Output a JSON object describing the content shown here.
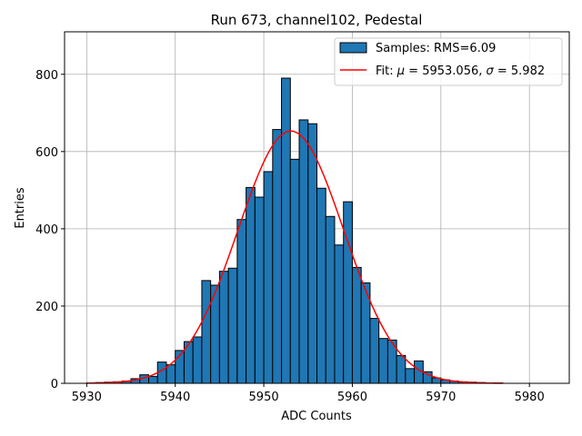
{
  "chart_data": {
    "type": "bar",
    "title": "Run 673, channel102, Pedestal",
    "xlabel": "ADC Counts",
    "ylabel": "Entries",
    "xlim": [
      5927.5,
      5984.5
    ],
    "ylim": [
      0,
      910
    ],
    "xticks": [
      5930,
      5940,
      5950,
      5960,
      5970,
      5980
    ],
    "yticks": [
      0,
      200,
      400,
      600,
      800
    ],
    "grid": true,
    "legend_position": "top-right",
    "colors": {
      "bars": "#1f77b4",
      "bar_edge": "#000000",
      "fit": "#ff0000",
      "grid": "#b0b0b0"
    },
    "histogram": {
      "name": "Samples: RMS=6.09",
      "bin_edges": [
        5930,
        5931,
        5932,
        5933,
        5934,
        5935,
        5936,
        5937,
        5938,
        5939,
        5940,
        5941,
        5942,
        5943,
        5944,
        5945,
        5946,
        5947,
        5948,
        5949,
        5950,
        5951,
        5952,
        5953,
        5954,
        5955,
        5956,
        5957,
        5958,
        5959,
        5960,
        5961,
        5962,
        5963,
        5964,
        5965,
        5966,
        5967,
        5968,
        5969,
        5970,
        5971,
        5972,
        5973,
        5974,
        5975,
        5976,
        5977
      ],
      "counts": [
        1,
        2,
        3,
        4,
        6,
        12,
        22,
        18,
        55,
        48,
        85,
        108,
        120,
        266,
        254,
        290,
        298,
        424,
        507,
        482,
        548,
        657,
        790,
        580,
        682,
        672,
        505,
        432,
        358,
        470,
        300,
        260,
        168,
        116,
        112,
        72,
        38,
        58,
        30,
        14,
        9,
        6,
        4,
        3,
        2,
        1,
        1
      ]
    },
    "fit": {
      "name": "Fit: μ = 5953.056, σ = 5.982",
      "label_parts": [
        "Fit: ",
        "μ",
        " = 5953.056, ",
        "σ",
        " = 5.982"
      ],
      "mu": 5953.056,
      "sigma": 5.982,
      "amplitude": 653,
      "x_range": [
        5930,
        5977
      ]
    }
  }
}
